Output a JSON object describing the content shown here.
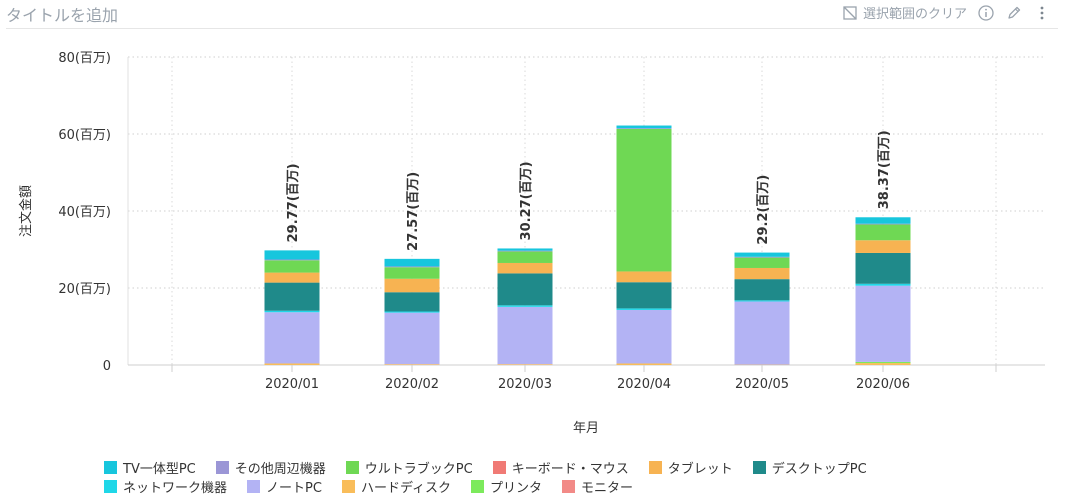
{
  "header": {
    "title": "タイトルを追加",
    "clear_selection_label": "選択範囲のクリア"
  },
  "icons": {
    "clear_selection": "clear-selection-icon",
    "info": "info-icon",
    "edit": "pencil-icon",
    "more": "more-vertical-icon"
  },
  "colors": {
    "TV一体型PC": "#17c6dd",
    "その他周辺機器": "#9b96d6",
    "ウルトラブックPC": "#6fd854",
    "キーボード・マウス": "#f07a75",
    "タブレット": "#f7b352",
    "デスクトップPC": "#1f8a8a",
    "ネットワーク機器": "#1fd7e8",
    "ノートPC": "#b3b3f4",
    "ハードディスク": "#f9bd5a",
    "プリンタ": "#7cea5c",
    "モニター": "#f28a87"
  },
  "chart_data": {
    "type": "bar",
    "stacked": true,
    "xlabel": "年月",
    "ylabel": "注文金額",
    "ylim": [
      0,
      80
    ],
    "yticks": [
      "0",
      "20(百万)",
      "40(百万)",
      "60(百万)",
      "80(百万)"
    ],
    "ytick_values": [
      0,
      20,
      40,
      60,
      80
    ],
    "grid": true,
    "legend_position": "bottom",
    "categories": [
      "2020/01",
      "2020/02",
      "2020/03",
      "2020/04",
      "2020/05",
      "2020/06"
    ],
    "totals_labels": [
      "29.77(百万)",
      "27.57(百万)",
      "30.27(百万)",
      "",
      "29.2(百万)",
      "38.37(百万)"
    ],
    "totals": [
      29.77,
      27.57,
      30.27,
      62.2,
      29.2,
      38.37
    ],
    "series": [
      {
        "name": "ハードディスク",
        "values": [
          0.4,
          0.2,
          0.2,
          0.4,
          0.1,
          0.5
        ]
      },
      {
        "name": "プリンタ",
        "values": [
          0.0,
          0.0,
          0.0,
          0.0,
          0.0,
          0.3
        ]
      },
      {
        "name": "ノートPC",
        "values": [
          13.3,
          13.4,
          14.9,
          13.9,
          16.4,
          19.8
        ]
      },
      {
        "name": "ネットワーク機器",
        "values": [
          0.4,
          0.3,
          0.4,
          0.4,
          0.3,
          0.5
        ]
      },
      {
        "name": "デスクトップPC",
        "values": [
          7.3,
          5.0,
          8.3,
          6.8,
          5.5,
          8.0
        ]
      },
      {
        "name": "タブレット",
        "values": [
          2.6,
          3.5,
          2.7,
          2.8,
          2.9,
          3.3
        ]
      },
      {
        "name": "ウルトラブックPC",
        "values": [
          3.2,
          3.0,
          3.0,
          37.0,
          2.7,
          4.1
        ]
      },
      {
        "name": "その他周辺機器",
        "values": [
          0.2,
          0.2,
          0.2,
          0.2,
          0.2,
          0.2
        ]
      },
      {
        "name": "TV一体型PC",
        "values": [
          2.37,
          1.97,
          0.57,
          0.7,
          1.1,
          1.67
        ]
      }
    ]
  },
  "legend": [
    [
      "TV一体型PC",
      "その他周辺機器",
      "ウルトラブックPC",
      "キーボード・マウス",
      "タブレット",
      "デスクトップPC"
    ],
    [
      "ネットワーク機器",
      "ノートPC",
      "ハードディスク",
      "プリンタ",
      "モニター"
    ]
  ]
}
